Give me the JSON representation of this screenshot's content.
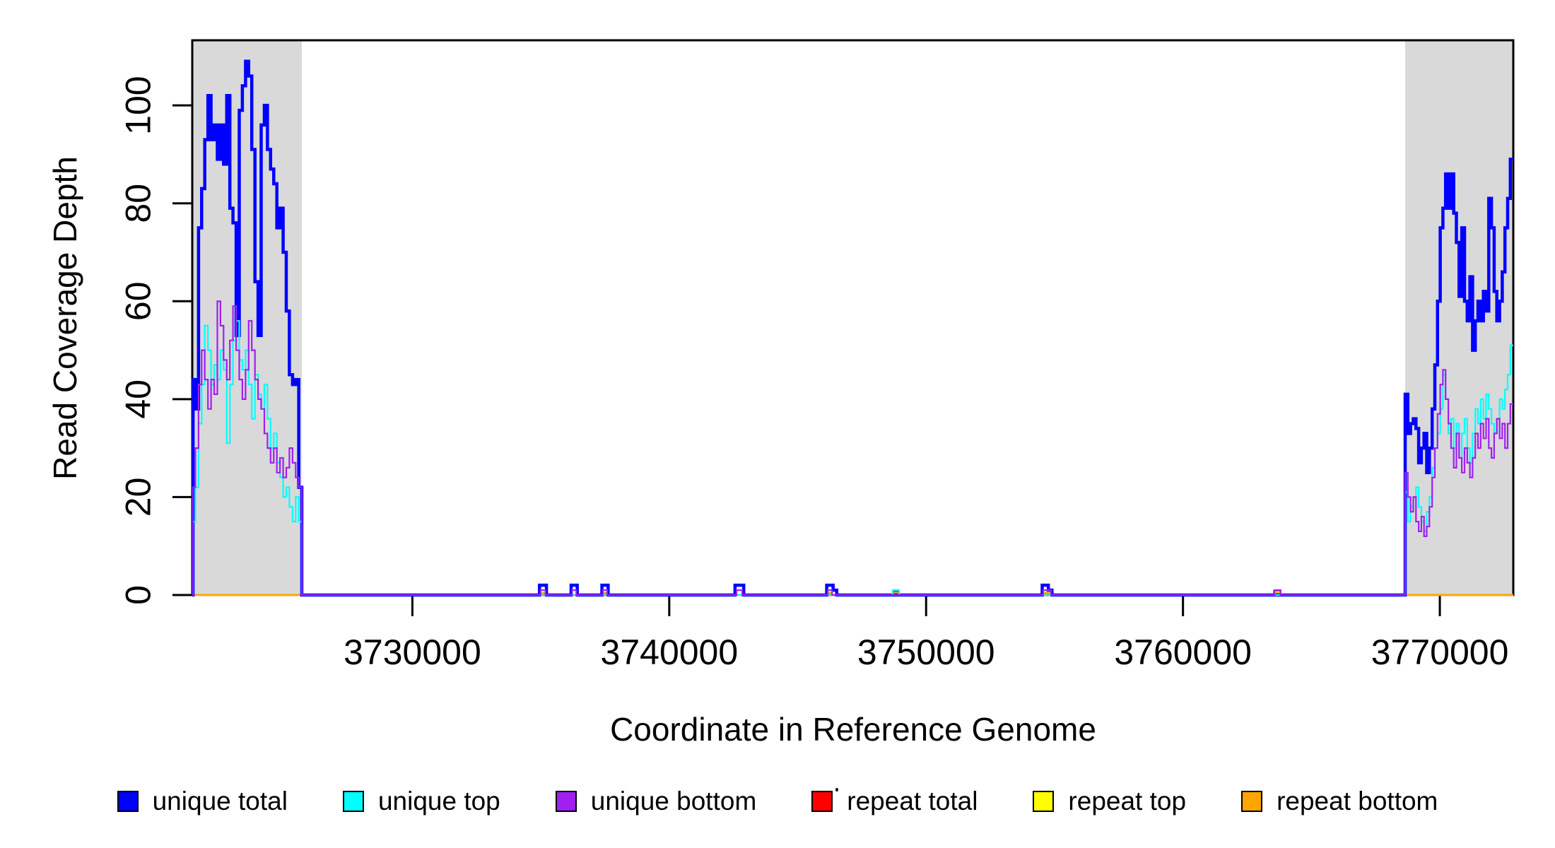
{
  "chart_data": {
    "type": "line",
    "step": true,
    "title": "",
    "xlabel": "Coordinate in Reference Genome",
    "ylabel": "Read Coverage Depth",
    "xlim": [
      3721430,
      3772860
    ],
    "ylim": [
      0,
      113.3
    ],
    "xticks": [
      3730000,
      3740000,
      3750000,
      3760000,
      3770000
    ],
    "yticks": [
      0,
      20,
      40,
      60,
      80,
      100
    ],
    "grid": false,
    "plot_background": "#FFFFFF",
    "box_color": "#000000",
    "shaded_region_color": "#D9D9D9",
    "shaded_regions": [
      {
        "x0": 3721430,
        "x1": 3725694
      },
      {
        "x0": 3768650,
        "x1": 3772860
      }
    ],
    "series": [
      {
        "name": "repeat total",
        "color": "#FF0000",
        "lw": 2.2,
        "points": [
          [
            3721430,
            0
          ],
          [
            3748730,
            0.8
          ],
          [
            3748920,
            0
          ],
          [
            3763540,
            0.8
          ],
          [
            3763760,
            0
          ]
        ]
      },
      {
        "name": "repeat top",
        "color": "#FFFF00",
        "lw": 2.2,
        "points": [
          [
            3721430,
            0
          ],
          [
            3754580,
            0.6
          ],
          [
            3754840,
            0
          ],
          [
            3763580,
            0.6
          ],
          [
            3763780,
            0
          ]
        ]
      },
      {
        "name": "repeat bottom",
        "color": "#FFA500",
        "lw": 3,
        "points": [
          [
            3721430,
            0
          ],
          [
            3734990,
            0.4
          ],
          [
            3735170,
            0
          ],
          [
            3737430,
            0.4
          ],
          [
            3737570,
            0
          ],
          [
            3746180,
            0.4
          ],
          [
            3746330,
            0
          ],
          [
            3748740,
            0.4
          ],
          [
            3748910,
            0
          ],
          [
            3754620,
            0.4
          ],
          [
            3754820,
            0
          ],
          [
            3763600,
            0.4
          ],
          [
            3763760,
            0
          ]
        ]
      },
      {
        "name": "unique total",
        "color": "#0000FF",
        "lw": 4.5,
        "points": [
          [
            3721430,
            0
          ],
          [
            3721460,
            44
          ],
          [
            3721552,
            38
          ],
          [
            3721674,
            75
          ],
          [
            3721796,
            83
          ],
          [
            3721918,
            93
          ],
          [
            3722040,
            102
          ],
          [
            3722162,
            93
          ],
          [
            3722284,
            96
          ],
          [
            3722406,
            89
          ],
          [
            3722528,
            96
          ],
          [
            3722650,
            88
          ],
          [
            3722772,
            102
          ],
          [
            3722894,
            79
          ],
          [
            3723016,
            76
          ],
          [
            3723138,
            53
          ],
          [
            3723260,
            99
          ],
          [
            3723382,
            104
          ],
          [
            3723504,
            109
          ],
          [
            3723626,
            106
          ],
          [
            3723748,
            91
          ],
          [
            3723870,
            64
          ],
          [
            3723992,
            53
          ],
          [
            3724114,
            96
          ],
          [
            3724236,
            100
          ],
          [
            3724358,
            91
          ],
          [
            3724480,
            87
          ],
          [
            3724602,
            84
          ],
          [
            3724724,
            75
          ],
          [
            3724846,
            79
          ],
          [
            3724968,
            70
          ],
          [
            3725090,
            58
          ],
          [
            3725212,
            45
          ],
          [
            3725334,
            43
          ],
          [
            3725456,
            44
          ],
          [
            3725578,
            22
          ],
          [
            3725694,
            0
          ],
          [
            3734950,
            2
          ],
          [
            3735220,
            0
          ],
          [
            3736180,
            2
          ],
          [
            3736420,
            0
          ],
          [
            3737380,
            2
          ],
          [
            3737620,
            0
          ],
          [
            3742560,
            2
          ],
          [
            3742900,
            0
          ],
          [
            3746130,
            2
          ],
          [
            3746380,
            1
          ],
          [
            3746520,
            0
          ],
          [
            3754520,
            2
          ],
          [
            3754760,
            1
          ],
          [
            3754900,
            0
          ],
          [
            3768650,
            41
          ],
          [
            3768755,
            33
          ],
          [
            3768860,
            35
          ],
          [
            3768965,
            36
          ],
          [
            3769070,
            34
          ],
          [
            3769175,
            27
          ],
          [
            3769280,
            30
          ],
          [
            3769385,
            33
          ],
          [
            3769490,
            25
          ],
          [
            3769595,
            30
          ],
          [
            3769700,
            38
          ],
          [
            3769805,
            47
          ],
          [
            3769910,
            60
          ],
          [
            3770015,
            75
          ],
          [
            3770120,
            79
          ],
          [
            3770225,
            86
          ],
          [
            3770330,
            79
          ],
          [
            3770435,
            86
          ],
          [
            3770540,
            78
          ],
          [
            3770645,
            72
          ],
          [
            3770750,
            61
          ],
          [
            3770855,
            75
          ],
          [
            3770960,
            60
          ],
          [
            3771065,
            56
          ],
          [
            3771170,
            65
          ],
          [
            3771275,
            50
          ],
          [
            3771380,
            56
          ],
          [
            3771485,
            60
          ],
          [
            3771590,
            56
          ],
          [
            3771695,
            62
          ],
          [
            3771800,
            58
          ],
          [
            3771905,
            81
          ],
          [
            3772010,
            75
          ],
          [
            3772115,
            62
          ],
          [
            3772220,
            56
          ],
          [
            3772325,
            60
          ],
          [
            3772430,
            66
          ],
          [
            3772535,
            75
          ],
          [
            3772640,
            81
          ],
          [
            3772745,
            89
          ]
        ]
      },
      {
        "name": "unique top",
        "color": "#00FFFF",
        "lw": 2.2,
        "points": [
          [
            3721430,
            0
          ],
          [
            3721460,
            15
          ],
          [
            3721552,
            22
          ],
          [
            3721674,
            35
          ],
          [
            3721796,
            43
          ],
          [
            3721918,
            55
          ],
          [
            3722040,
            50
          ],
          [
            3722162,
            43
          ],
          [
            3722284,
            47
          ],
          [
            3722406,
            44
          ],
          [
            3722528,
            50
          ],
          [
            3722650,
            46
          ],
          [
            3722772,
            31
          ],
          [
            3722894,
            43
          ],
          [
            3723016,
            52
          ],
          [
            3723138,
            56
          ],
          [
            3723260,
            48
          ],
          [
            3723382,
            46
          ],
          [
            3723504,
            50
          ],
          [
            3723626,
            43
          ],
          [
            3723748,
            36
          ],
          [
            3723870,
            45
          ],
          [
            3723992,
            41
          ],
          [
            3724114,
            38
          ],
          [
            3724236,
            43
          ],
          [
            3724358,
            36
          ],
          [
            3724480,
            30
          ],
          [
            3724602,
            33
          ],
          [
            3724724,
            27
          ],
          [
            3724846,
            24
          ],
          [
            3724968,
            20
          ],
          [
            3725090,
            22
          ],
          [
            3725212,
            18
          ],
          [
            3725334,
            15
          ],
          [
            3725456,
            20
          ],
          [
            3725578,
            15
          ],
          [
            3725694,
            0
          ],
          [
            3748700,
            1
          ],
          [
            3748950,
            0
          ],
          [
            3768650,
            21
          ],
          [
            3768755,
            15
          ],
          [
            3768860,
            18
          ],
          [
            3768965,
            20
          ],
          [
            3769070,
            22
          ],
          [
            3769175,
            18
          ],
          [
            3769280,
            15
          ],
          [
            3769385,
            13
          ],
          [
            3769490,
            17
          ],
          [
            3769595,
            20
          ],
          [
            3769700,
            26
          ],
          [
            3769805,
            30
          ],
          [
            3769910,
            33
          ],
          [
            3770015,
            38
          ],
          [
            3770120,
            45
          ],
          [
            3770225,
            40
          ],
          [
            3770330,
            33
          ],
          [
            3770435,
            36
          ],
          [
            3770540,
            30
          ],
          [
            3770645,
            35
          ],
          [
            3770750,
            28
          ],
          [
            3770855,
            33
          ],
          [
            3770960,
            36
          ],
          [
            3771065,
            30
          ],
          [
            3771170,
            27
          ],
          [
            3771275,
            33
          ],
          [
            3771380,
            38
          ],
          [
            3771485,
            35
          ],
          [
            3771590,
            40
          ],
          [
            3771695,
            36
          ],
          [
            3771800,
            41
          ],
          [
            3771905,
            38
          ],
          [
            3772010,
            35
          ],
          [
            3772115,
            33
          ],
          [
            3772220,
            36
          ],
          [
            3772325,
            40
          ],
          [
            3772430,
            38
          ],
          [
            3772535,
            42
          ],
          [
            3772640,
            45
          ],
          [
            3772745,
            51
          ]
        ]
      },
      {
        "name": "unique bottom",
        "color": "#A020F0",
        "lw": 2.2,
        "points": [
          [
            3721430,
            0
          ],
          [
            3721460,
            22
          ],
          [
            3721552,
            30
          ],
          [
            3721674,
            43
          ],
          [
            3721796,
            50
          ],
          [
            3721918,
            44
          ],
          [
            3722040,
            38
          ],
          [
            3722162,
            44
          ],
          [
            3722284,
            41
          ],
          [
            3722406,
            60
          ],
          [
            3722528,
            55
          ],
          [
            3722650,
            48
          ],
          [
            3722772,
            44
          ],
          [
            3722894,
            52
          ],
          [
            3723016,
            59
          ],
          [
            3723138,
            50
          ],
          [
            3723260,
            44
          ],
          [
            3723382,
            40
          ],
          [
            3723504,
            46
          ],
          [
            3723626,
            56
          ],
          [
            3723748,
            50
          ],
          [
            3723870,
            44
          ],
          [
            3723992,
            40
          ],
          [
            3724114,
            38
          ],
          [
            3724236,
            33
          ],
          [
            3724358,
            30
          ],
          [
            3724480,
            27
          ],
          [
            3724602,
            30
          ],
          [
            3724724,
            25
          ],
          [
            3724846,
            28
          ],
          [
            3724968,
            24
          ],
          [
            3725090,
            26
          ],
          [
            3725212,
            30
          ],
          [
            3725334,
            27
          ],
          [
            3725456,
            24
          ],
          [
            3725578,
            22
          ],
          [
            3725694,
            0
          ],
          [
            3734990,
            1
          ],
          [
            3735180,
            0
          ],
          [
            3736220,
            1
          ],
          [
            3736380,
            0
          ],
          [
            3737420,
            1
          ],
          [
            3737580,
            0
          ],
          [
            3742620,
            1
          ],
          [
            3742840,
            0
          ],
          [
            3746170,
            1
          ],
          [
            3746340,
            0
          ],
          [
            3754560,
            1
          ],
          [
            3754860,
            0
          ],
          [
            3763560,
            1
          ],
          [
            3763800,
            0
          ],
          [
            3768650,
            25
          ],
          [
            3768755,
            20
          ],
          [
            3768860,
            17
          ],
          [
            3768965,
            20
          ],
          [
            3769070,
            15
          ],
          [
            3769175,
            13
          ],
          [
            3769280,
            16
          ],
          [
            3769385,
            12
          ],
          [
            3769490,
            14
          ],
          [
            3769595,
            18
          ],
          [
            3769700,
            24
          ],
          [
            3769805,
            30
          ],
          [
            3769910,
            37
          ],
          [
            3770015,
            43
          ],
          [
            3770120,
            46
          ],
          [
            3770225,
            40
          ],
          [
            3770330,
            35
          ],
          [
            3770435,
            30
          ],
          [
            3770540,
            26
          ],
          [
            3770645,
            33
          ],
          [
            3770750,
            28
          ],
          [
            3770855,
            25
          ],
          [
            3770960,
            30
          ],
          [
            3771065,
            27
          ],
          [
            3771170,
            24
          ],
          [
            3771275,
            28
          ],
          [
            3771380,
            33
          ],
          [
            3771485,
            30
          ],
          [
            3771590,
            35
          ],
          [
            3771695,
            32
          ],
          [
            3771800,
            36
          ],
          [
            3771905,
            30
          ],
          [
            3772010,
            28
          ],
          [
            3772115,
            33
          ],
          [
            3772220,
            36
          ],
          [
            3772325,
            32
          ],
          [
            3772430,
            35
          ],
          [
            3772535,
            30
          ],
          [
            3772640,
            35
          ],
          [
            3772745,
            39
          ]
        ]
      }
    ],
    "legend": {
      "position": "bottom-horizontal",
      "items": [
        {
          "label": "unique total",
          "color": "#0000FF"
        },
        {
          "label": "unique top",
          "color": "#00FFFF"
        },
        {
          "label": "unique bottom",
          "color": "#A020F0"
        },
        {
          "label": "repeat total",
          "color": "#FF0000"
        },
        {
          "label": "repeat top",
          "color": "#FFFF00"
        },
        {
          "label": "repeat bottom",
          "color": "#FFA500"
        }
      ]
    }
  }
}
